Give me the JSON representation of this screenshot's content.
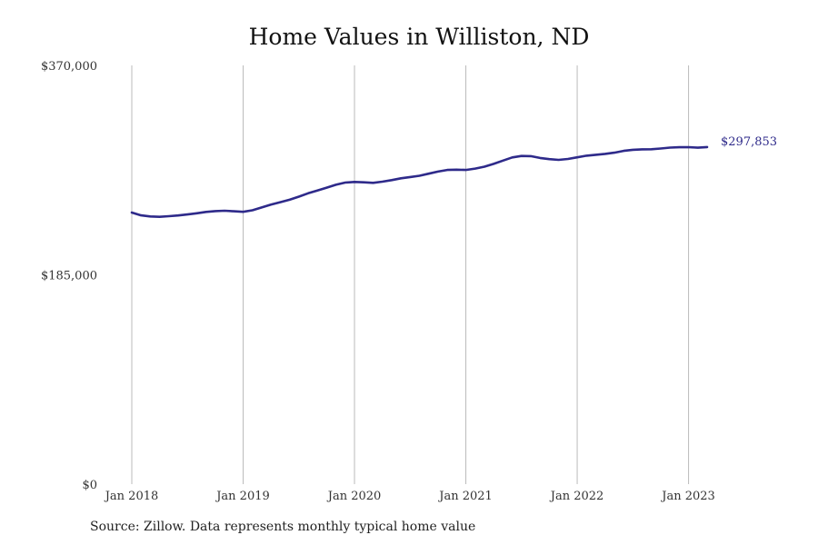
{
  "chart_data": {
    "type": "line",
    "title": "Home Values in Williston, ND",
    "xlabel": "",
    "ylabel": "",
    "ylim": [
      0,
      370000
    ],
    "y_ticks": [
      {
        "value": 0,
        "label": "$0"
      },
      {
        "value": 185000,
        "label": "$185,000"
      },
      {
        "value": 370000,
        "label": "$370,000"
      }
    ],
    "x_ticks": [
      {
        "value": 2018.0,
        "label": "Jan 2018"
      },
      {
        "value": 2019.0,
        "label": "Jan 2019"
      },
      {
        "value": 2020.0,
        "label": "Jan 2020"
      },
      {
        "value": 2021.0,
        "label": "Jan 2021"
      },
      {
        "value": 2022.0,
        "label": "Jan 2022"
      },
      {
        "value": 2023.0,
        "label": "Jan 2023"
      }
    ],
    "xlim": [
      2018.0,
      2023.1667
    ],
    "grid": "vertical",
    "series": [
      {
        "color": "#2e2a8a",
        "end_label": "$297,853",
        "x": [
          2018.0,
          2018.0833,
          2018.1667,
          2018.25,
          2018.3333,
          2018.4167,
          2018.5,
          2018.5833,
          2018.6667,
          2018.75,
          2018.8333,
          2018.9167,
          2019.0,
          2019.0833,
          2019.1667,
          2019.25,
          2019.3333,
          2019.4167,
          2019.5,
          2019.5833,
          2019.6667,
          2019.75,
          2019.8333,
          2019.9167,
          2020.0,
          2020.0833,
          2020.1667,
          2020.25,
          2020.3333,
          2020.4167,
          2020.5,
          2020.5833,
          2020.6667,
          2020.75,
          2020.8333,
          2020.9167,
          2021.0,
          2021.0833,
          2021.1667,
          2021.25,
          2021.3333,
          2021.4167,
          2021.5,
          2021.5833,
          2021.6667,
          2021.75,
          2021.8333,
          2021.9167,
          2022.0,
          2022.0833,
          2022.1667,
          2022.25,
          2022.3333,
          2022.4167,
          2022.5,
          2022.5833,
          2022.6667,
          2022.75,
          2022.8333,
          2022.9167,
          2023.0,
          2023.0833,
          2023.1667
        ],
        "values": [
          240000,
          237500,
          236500,
          236200,
          236800,
          237400,
          238300,
          239300,
          240500,
          241300,
          241600,
          241100,
          240600,
          242000,
          244500,
          247000,
          249100,
          251300,
          254000,
          257000,
          259400,
          262000,
          264500,
          266500,
          267000,
          266700,
          266200,
          267300,
          268600,
          270200,
          271400,
          272500,
          274300,
          276200,
          277600,
          277900,
          277600,
          278800,
          280500,
          283000,
          285900,
          288700,
          290000,
          289800,
          288200,
          287200,
          286500,
          287300,
          288800,
          290200,
          291000,
          291800,
          292900,
          294500,
          295400,
          295800,
          295900,
          296600,
          297400,
          297700,
          297800,
          297300,
          297853
        ]
      }
    ]
  },
  "source_note": "Source: Zillow. Data represents monthly typical home value"
}
